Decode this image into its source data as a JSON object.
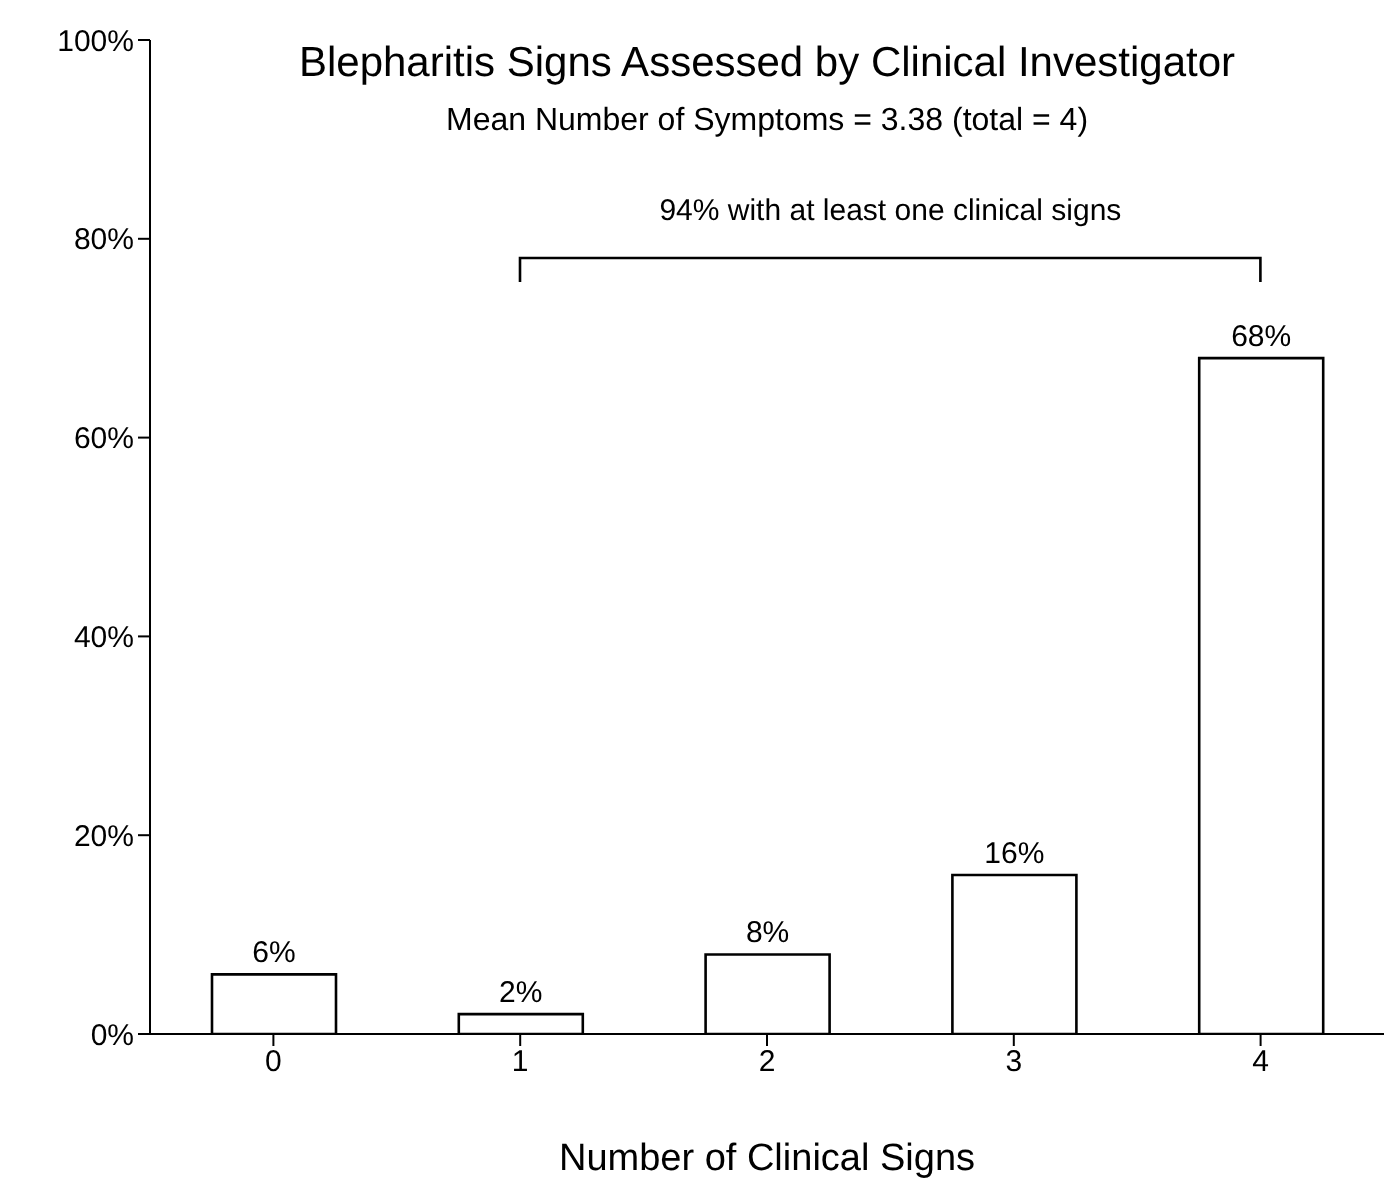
{
  "chart_data": {
    "type": "bar",
    "title": "Blepharitis Signs Assessed by Clinical Investigator",
    "subtitle": "Mean Number of Symptoms = 3.38 (total = 4)",
    "xlabel": "Number of Clinical Signs",
    "categories": [
      "0",
      "1",
      "2",
      "3",
      "4"
    ],
    "values": [
      6,
      2,
      8,
      16,
      68
    ],
    "value_labels": [
      "6%",
      "2%",
      "8%",
      "16%",
      "68%"
    ],
    "color": "#ffffff",
    "ylim": [
      0,
      100
    ],
    "yticks": [
      {
        "value": 0,
        "label": "0%"
      },
      {
        "value": 20,
        "label": "20%"
      },
      {
        "value": 40,
        "label": "40%"
      },
      {
        "value": 60,
        "label": "60%"
      },
      {
        "value": 80,
        "label": "80%"
      },
      {
        "value": 100,
        "label": "100%"
      }
    ],
    "annotations": [
      "94% with at least one clinical signs"
    ],
    "grid": false,
    "legend": false
  }
}
